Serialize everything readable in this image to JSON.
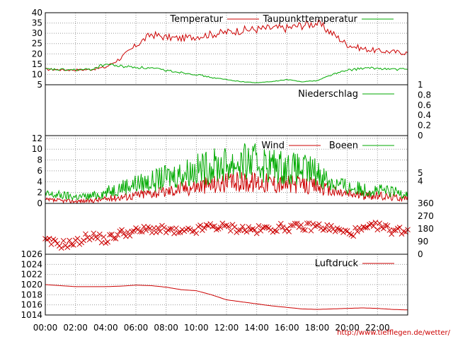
{
  "colors": {
    "red": "#cc0000",
    "green": "#00aa00",
    "grid": "#999999",
    "frame": "#000000"
  },
  "footer": {
    "url": "http://www.tiefflegen.de/wetter/"
  },
  "chart_data": [
    {
      "type": "line",
      "ylim": [
        5,
        40
      ],
      "y_ticks": [
        5,
        10,
        15,
        20,
        25,
        30,
        35,
        40
      ],
      "grid": true,
      "legend": "top",
      "x": [
        "00:00",
        "01:00",
        "02:00",
        "03:00",
        "04:00",
        "05:00",
        "06:00",
        "07:00",
        "08:00",
        "09:00",
        "10:00",
        "11:00",
        "12:00",
        "13:00",
        "14:00",
        "15:00",
        "16:00",
        "17:00",
        "18:00",
        "19:00",
        "20:00",
        "21:00",
        "22:00",
        "23:00",
        "23:59"
      ],
      "series": [
        {
          "name": "Temperatur",
          "color": "red",
          "values": [
            12.5,
            12.3,
            12.2,
            12.4,
            13.5,
            18,
            24,
            29.5,
            28,
            27.5,
            28.5,
            29.5,
            30.5,
            31.5,
            32,
            32.5,
            32.5,
            34,
            35,
            30,
            24.5,
            22.5,
            21.5,
            21,
            20.5
          ]
        },
        {
          "name": "Taupunkttemperatur",
          "color": "green",
          "values": [
            12.5,
            12.3,
            12.2,
            12.4,
            15,
            14,
            13.5,
            13,
            12,
            11,
            10,
            8.5,
            7.5,
            6.5,
            6,
            6.5,
            7.5,
            6.5,
            7,
            10,
            12,
            13,
            13,
            12.5,
            12.5
          ]
        }
      ]
    },
    {
      "type": "line",
      "ylim": [
        0,
        1
      ],
      "y_ticks_right": [
        0,
        0.2,
        0.4,
        0.6,
        0.8,
        1
      ],
      "grid": false,
      "legend": "top-right",
      "series": [
        {
          "name": "Niederschlag",
          "color": "green",
          "values": []
        }
      ]
    },
    {
      "type": "line",
      "ylim": [
        0,
        12.5
      ],
      "y_ticks": [
        0,
        2,
        4,
        6,
        8,
        10,
        12
      ],
      "y_ticks_right": [
        4,
        5
      ],
      "grid": true,
      "legend": "top-right",
      "x": [
        "00:00",
        "01:00",
        "02:00",
        "03:00",
        "04:00",
        "05:00",
        "06:00",
        "07:00",
        "08:00",
        "09:00",
        "10:00",
        "11:00",
        "12:00",
        "13:00",
        "14:00",
        "15:00",
        "16:00",
        "17:00",
        "18:00",
        "19:00",
        "20:00",
        "21:00",
        "22:00",
        "23:00",
        "23:59"
      ],
      "series": [
        {
          "name": "Wind",
          "color": "red",
          "values": [
            0.6,
            0.5,
            0.4,
            0.5,
            0.8,
            1.2,
            1.5,
            2,
            2.2,
            2.8,
            3.2,
            3.5,
            3.8,
            4,
            4,
            3.8,
            3.6,
            3.4,
            3.2,
            2.2,
            1.8,
            1.5,
            1.4,
            1.2,
            1
          ]
        },
        {
          "name": "Boeen",
          "color": "green",
          "values": [
            1.6,
            1.5,
            1.2,
            1.3,
            2,
            3,
            3.6,
            4,
            4.8,
            5.5,
            6.2,
            6.8,
            7.2,
            7.5,
            7.5,
            7,
            6.6,
            6.2,
            5.8,
            3.8,
            3,
            2.6,
            2.4,
            2.1,
            2
          ]
        }
      ]
    },
    {
      "type": "scatter",
      "ylim": [
        0,
        360
      ],
      "y_ticks_right": [
        0,
        90,
        180,
        270,
        360
      ],
      "grid": false,
      "marker": "x",
      "color": "red",
      "x": [
        "00:00",
        "01:00",
        "02:00",
        "03:00",
        "04:00",
        "05:00",
        "06:00",
        "07:00",
        "08:00",
        "09:00",
        "10:00",
        "11:00",
        "12:00",
        "13:00",
        "14:00",
        "15:00",
        "16:00",
        "17:00",
        "18:00",
        "19:00",
        "20:00",
        "21:00",
        "22:00",
        "23:00",
        "23:59"
      ],
      "values": [
        90,
        70,
        80,
        135,
        100,
        150,
        160,
        180,
        170,
        150,
        170,
        200,
        190,
        180,
        170,
        185,
        190,
        190,
        200,
        180,
        150,
        170,
        200,
        170,
        170
      ]
    },
    {
      "type": "line",
      "ylim": [
        1014,
        1026
      ],
      "y_ticks": [
        1014,
        1016,
        1018,
        1020,
        1022,
        1024,
        1026
      ],
      "x_ticks": [
        "00:00",
        "02:00",
        "04:00",
        "06:00",
        "08:00",
        "10:00",
        "12:00",
        "14:00",
        "16:00",
        "18:00",
        "20:00",
        "22:00"
      ],
      "grid": true,
      "legend": "top-right",
      "x": [
        "00:00",
        "01:00",
        "02:00",
        "03:00",
        "04:00",
        "05:00",
        "06:00",
        "07:00",
        "08:00",
        "09:00",
        "10:00",
        "11:00",
        "12:00",
        "13:00",
        "14:00",
        "15:00",
        "16:00",
        "17:00",
        "18:00",
        "19:00",
        "20:00",
        "21:00",
        "22:00",
        "23:00",
        "23:59"
      ],
      "series": [
        {
          "name": "Luftdruck",
          "color": "red",
          "values": [
            1020,
            1019.8,
            1019.6,
            1019.6,
            1019.6,
            1019.7,
            1019.9,
            1019.8,
            1019.5,
            1019,
            1018.8,
            1018,
            1017,
            1016.6,
            1016.2,
            1015.8,
            1015.5,
            1015.2,
            1015.1,
            1015.2,
            1015.3,
            1015.4,
            1015.3,
            1015.1,
            1015
          ]
        }
      ]
    }
  ]
}
